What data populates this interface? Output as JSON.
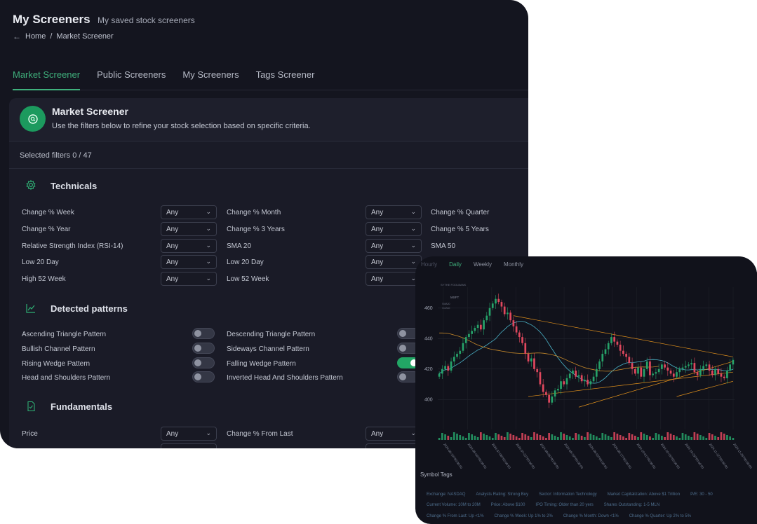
{
  "header": {
    "title": "My Screeners",
    "subtitle": "My saved stock screeners"
  },
  "breadcrumb": {
    "home": "Home",
    "separator": "/",
    "current": "Market Screener"
  },
  "tabs": [
    "Market Screener",
    "Public Screeners",
    "My Screeners",
    "Tags Screener"
  ],
  "active_tab": "Market Screener",
  "card": {
    "title": "Market Screener",
    "description": "Use the filters below to refine your stock selection based on specific criteria.",
    "icon": "search-icon",
    "icon_color": "#1c9a5e"
  },
  "selected_filters": "Selected filters 0 / 47",
  "technicals": {
    "title": "Technicals",
    "icon": "gear-icon",
    "filters": [
      {
        "label": "Change % Week",
        "value": "Any"
      },
      {
        "label": "Change % Month",
        "value": "Any"
      },
      {
        "label": "Change % Quarter"
      },
      {
        "label": "Change % Year",
        "value": "Any"
      },
      {
        "label": "Change % 3 Years",
        "value": "Any"
      },
      {
        "label": "Change % 5 Years"
      },
      {
        "label": "Relative Strength Index (RSI-14)",
        "value": "Any"
      },
      {
        "label": "SMA 20",
        "value": "Any"
      },
      {
        "label": "SMA 50"
      },
      {
        "label": "Low 20 Day",
        "value": "Any"
      },
      {
        "label": "Low 20 Day",
        "value": "Any"
      },
      {
        "label": "High 52 Week",
        "value": "Any"
      },
      {
        "label": "Low 52 Week",
        "value": "Any"
      }
    ]
  },
  "patterns": {
    "title": "Detected patterns",
    "icon": "chart-icon",
    "items": [
      {
        "label": "Ascending Triangle Pattern",
        "on": false
      },
      {
        "label": "Descending Triangle Pattern",
        "on": false
      },
      {
        "label": "Bullish Channel Pattern",
        "on": false
      },
      {
        "label": "Sideways Channel Pattern",
        "on": false
      },
      {
        "label": "Rising Wedge Pattern",
        "on": false
      },
      {
        "label": "Falling Wedge Pattern",
        "on": true
      },
      {
        "label": "Head and Shoulders Pattern",
        "on": false
      },
      {
        "label": "Inverted Head And Shoulders Pattern",
        "on": false
      }
    ]
  },
  "fundamentals": {
    "title": "Fundamentals",
    "icon": "document-icon",
    "filters": [
      {
        "label": "Price",
        "value": "Any"
      },
      {
        "label": "Change % From Last",
        "value": "Any"
      }
    ]
  },
  "chart_panel": {
    "tabs": [
      "Hourly",
      "Daily",
      "Weekly",
      "Monthly"
    ],
    "active_tab": "Daily",
    "watermark": "SYTHE FOOLBANK",
    "symbol": "MSFT",
    "legend": [
      "SMA20",
      "SMA50"
    ],
    "colors": {
      "up": "#26a269",
      "down": "#e0485e",
      "sma20": "#4ab3c8",
      "sma50": "#c88a2a",
      "trendline": "#e0901c"
    }
  },
  "chart_data": {
    "type": "candlestick",
    "symbol": "MSFT",
    "interval": "Daily",
    "ylim": [
      385,
      470
    ],
    "y_ticks": [
      400,
      420,
      440,
      460
    ],
    "x_ticks": [
      "2024-06-10T00:00:00",
      "2024-06-24T00:00:00",
      "2024-07-08T00:00:00",
      "2024-07-22T00:00:00",
      "2024-08-05T00:00:00",
      "2024-08-19T00:00:00",
      "2024-09-03T00:00:00",
      "2024-09-17T00:00:00",
      "2024-10-01T00:00:00",
      "2024-10-15T00:00:00",
      "2024-10-29T00:00:00",
      "2024-11-12T00:00:00",
      "2024-11-26T00:00:00"
    ],
    "close": [
      417,
      420,
      422,
      419,
      425,
      428,
      430,
      432,
      437,
      441,
      443,
      445,
      447,
      449,
      446,
      452,
      455,
      460,
      463,
      466,
      464,
      461,
      456,
      457,
      452,
      448,
      444,
      441,
      437,
      430,
      425,
      427,
      420,
      418,
      410,
      405,
      403,
      398,
      402,
      406,
      407,
      412,
      410,
      414,
      417,
      419,
      415,
      416,
      412,
      413,
      410,
      412,
      415,
      420,
      425,
      430,
      433,
      437,
      441,
      438,
      436,
      432,
      430,
      428,
      424,
      420,
      417,
      421,
      415,
      420,
      425,
      416,
      417,
      418,
      420,
      423,
      421,
      419,
      417,
      415,
      418,
      420,
      421,
      422,
      423,
      424,
      418,
      416,
      420,
      422,
      423,
      419,
      416,
      420,
      417,
      415,
      414,
      419,
      423,
      426
    ],
    "volume_shown": true,
    "sma_lines": [
      "SMA20",
      "SMA50"
    ],
    "trendlines": 4
  },
  "symbol_tags": {
    "title": "Symbol Tags",
    "rows": [
      [
        "Exchange: NASDAQ",
        "Analysts Rating: Strong Buy",
        "Sector: Information Technology",
        "Market Capitalization: Above $1 Trillion",
        "P/E: 30 - 50"
      ],
      [
        "Current Volume: 10M to 20M",
        "Price: Above $100",
        "IPO Timing: Older than 20 yers",
        "Shares Outstanding: 1-5 MLN"
      ],
      [
        "Change % From Last: Up <1%",
        "Change % Week: Up 1% to 2%",
        "Change % Month: Down <1%",
        "Change % Quarter: Up 2% to 5%"
      ]
    ]
  }
}
